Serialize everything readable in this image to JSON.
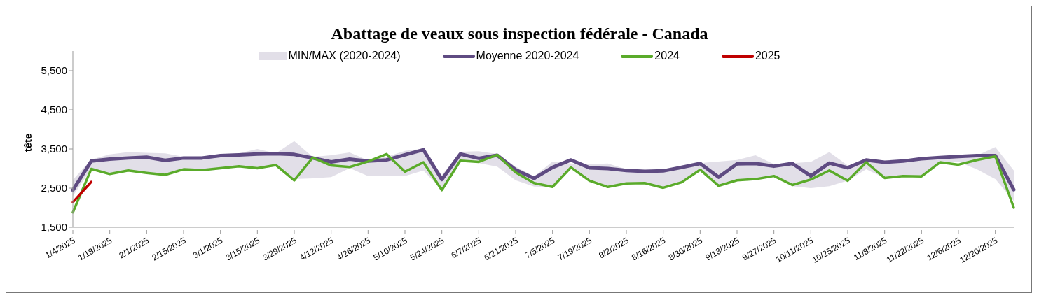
{
  "chart_data": {
    "type": "line",
    "title": "Abattage de veaux sous inspection fédérale - Canada",
    "ylabel": "tête",
    "annotations": [
      "MIN/MAX (2020-2024)"
    ],
    "categories": [
      "1/4/2025",
      null,
      "1/18/2025",
      null,
      "2/1/2025",
      null,
      "2/15/2025",
      null,
      "3/1/2025",
      null,
      "3/15/2025",
      null,
      "3/29/2025",
      null,
      "4/12/2025",
      null,
      "4/26/2025",
      null,
      "5/10/2025",
      null,
      "5/24/2025",
      null,
      "6/7/2025",
      null,
      "6/21/2025",
      null,
      "7/5/2025",
      null,
      "7/19/2025",
      null,
      "8/2/2025",
      null,
      "8/16/2025",
      null,
      "8/30/2025",
      null,
      "9/13/2025",
      null,
      "9/27/2025",
      null,
      "10/11/2025",
      null,
      "10/25/2025",
      null,
      "11/8/2025",
      null,
      "11/22/2025",
      null,
      "12/6/2025",
      null,
      "12/20/2025",
      null
    ],
    "series": [
      {
        "name": "Moyenne 2020-2024",
        "color": "#5f4b82",
        "values": [
          2450,
          3190,
          3240,
          3270,
          3290,
          3210,
          3270,
          3270,
          3330,
          3350,
          3370,
          3380,
          3360,
          3270,
          3170,
          3240,
          3190,
          3220,
          3350,
          3480,
          2720,
          3370,
          3260,
          3340,
          2970,
          2750,
          3030,
          3220,
          3020,
          3000,
          2950,
          2930,
          2940,
          3030,
          3130,
          2780,
          3120,
          3130,
          3060,
          3130,
          2810,
          3140,
          3020,
          3220,
          3160,
          3190,
          3250,
          3280,
          3310,
          3330,
          3330,
          2460
        ],
        "lower": [
          2300,
          2990,
          2860,
          2950,
          2890,
          2840,
          2980,
          2960,
          3010,
          3060,
          3010,
          3090,
          2730,
          2750,
          2780,
          3010,
          2810,
          2810,
          2810,
          2950,
          2450,
          3200,
          3140,
          3050,
          2700,
          2540,
          2530,
          3020,
          2690,
          2530,
          2620,
          2630,
          2510,
          2650,
          2970,
          2520,
          2700,
          2730,
          2810,
          2550,
          2500,
          2550,
          2690,
          2980,
          2760,
          2810,
          2800,
          3160,
          3170,
          2980,
          2730,
          2170
        ],
        "upper": [
          2710,
          3230,
          3360,
          3420,
          3400,
          3390,
          3300,
          3310,
          3360,
          3390,
          3500,
          3390,
          3700,
          3300,
          3340,
          3410,
          3210,
          3300,
          3450,
          3510,
          2830,
          3430,
          3440,
          3370,
          3050,
          2800,
          3180,
          3130,
          3110,
          3130,
          2980,
          2950,
          2950,
          3040,
          3140,
          3180,
          3220,
          3340,
          3110,
          3140,
          3170,
          3420,
          3080,
          3170,
          3160,
          3200,
          3250,
          3280,
          3310,
          3330,
          3550,
          2950
        ]
      },
      {
        "name": "2024",
        "color": "#5aab2a",
        "values": [
          1880,
          2990,
          2860,
          2950,
          2890,
          2840,
          2980,
          2960,
          3010,
          3060,
          3010,
          3090,
          2700,
          3280,
          3080,
          3040,
          3180,
          3370,
          2920,
          3160,
          2450,
          3200,
          3170,
          3350,
          2900,
          2630,
          2530,
          3030,
          2690,
          2530,
          2620,
          2630,
          2510,
          2650,
          2970,
          2560,
          2700,
          2730,
          2810,
          2580,
          2720,
          2950,
          2690,
          3160,
          2760,
          2810,
          2800,
          3160,
          3100,
          3220,
          3310,
          2000
        ]
      },
      {
        "name": "2025",
        "color": "#c00000",
        "values": [
          2140,
          2660,
          null,
          null,
          null,
          null,
          null,
          null,
          null,
          null,
          null,
          null,
          null,
          null,
          null,
          null,
          null,
          null,
          null,
          null,
          null,
          null,
          null,
          null,
          null,
          null,
          null,
          null,
          null,
          null,
          null,
          null,
          null,
          null,
          null,
          null,
          null,
          null,
          null,
          null,
          null,
          null,
          null,
          null,
          null,
          null,
          null,
          null,
          null,
          null,
          null,
          null
        ]
      }
    ],
    "ylim": [
      1500,
      6000
    ],
    "yticks": [
      {
        "value": 1500,
        "label": "1,500"
      },
      {
        "value": 2500,
        "label": "2,500"
      },
      {
        "value": 3500,
        "label": "3,500"
      },
      {
        "value": 4500,
        "label": "4,500"
      },
      {
        "value": 5500,
        "label": "5,500"
      }
    ],
    "legend": "top",
    "grid": false,
    "marker": "none",
    "line_style": "solid"
  }
}
